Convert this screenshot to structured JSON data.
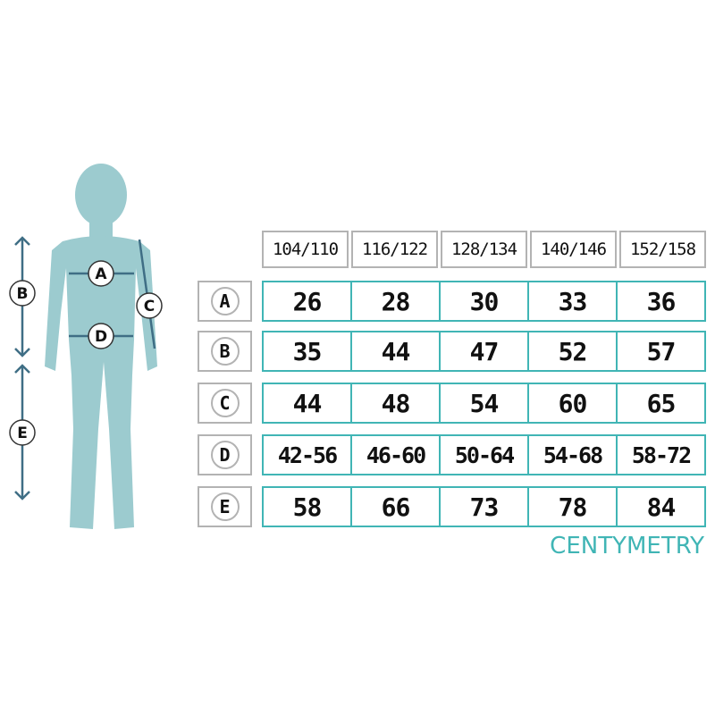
{
  "colors": {
    "teal": "#40b5b5",
    "gray_border": "#b3b3b3",
    "figure": "#9ccbcf",
    "arrow": "#3f6e85"
  },
  "figure_labels": [
    "A",
    "B",
    "C",
    "D",
    "E"
  ],
  "table": {
    "sizes": [
      "104/110",
      "116/122",
      "128/134",
      "140/146",
      "152/158"
    ],
    "rows": [
      {
        "label": "A",
        "values": [
          "26",
          "28",
          "30",
          "33",
          "36"
        ]
      },
      {
        "label": "B",
        "values": [
          "35",
          "44",
          "47",
          "52",
          "57"
        ]
      },
      {
        "label": "C",
        "values": [
          "44",
          "48",
          "54",
          "60",
          "65"
        ]
      },
      {
        "label": "D",
        "values": [
          "42-56",
          "46-60",
          "50-64",
          "54-68",
          "58-72"
        ]
      },
      {
        "label": "E",
        "values": [
          "58",
          "66",
          "73",
          "78",
          "84"
        ]
      }
    ]
  },
  "unit": "CENTYMETRY"
}
